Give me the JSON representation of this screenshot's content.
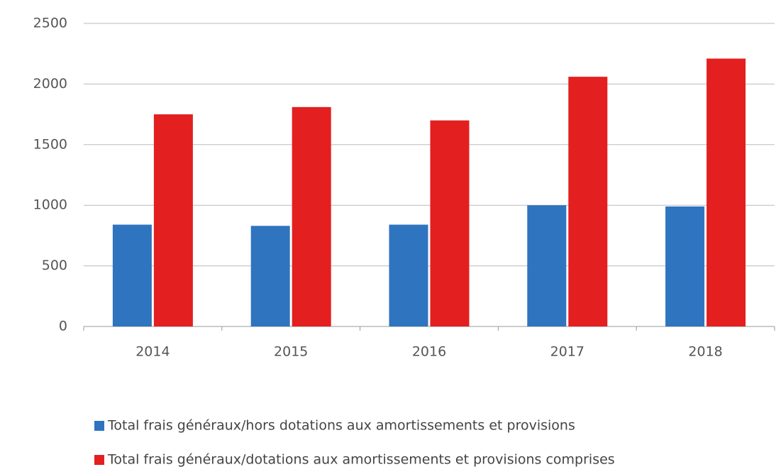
{
  "chart_data": {
    "type": "bar",
    "categories": [
      "2014",
      "2015",
      "2016",
      "2017",
      "2018"
    ],
    "series": [
      {
        "name": "Total frais généraux/hors dotations aux amortissements et provisions",
        "color": "#2f74bf",
        "values": [
          840,
          830,
          840,
          1000,
          990
        ]
      },
      {
        "name": "Total frais généraux/dotations aux amortissements et provisions comprises",
        "color": "#e41f1f",
        "values": [
          1750,
          1810,
          1700,
          2060,
          2210
        ]
      }
    ],
    "ylim": [
      0,
      2500
    ],
    "yticks": [
      0,
      500,
      1000,
      1500,
      2000,
      2500
    ],
    "grid": true
  }
}
